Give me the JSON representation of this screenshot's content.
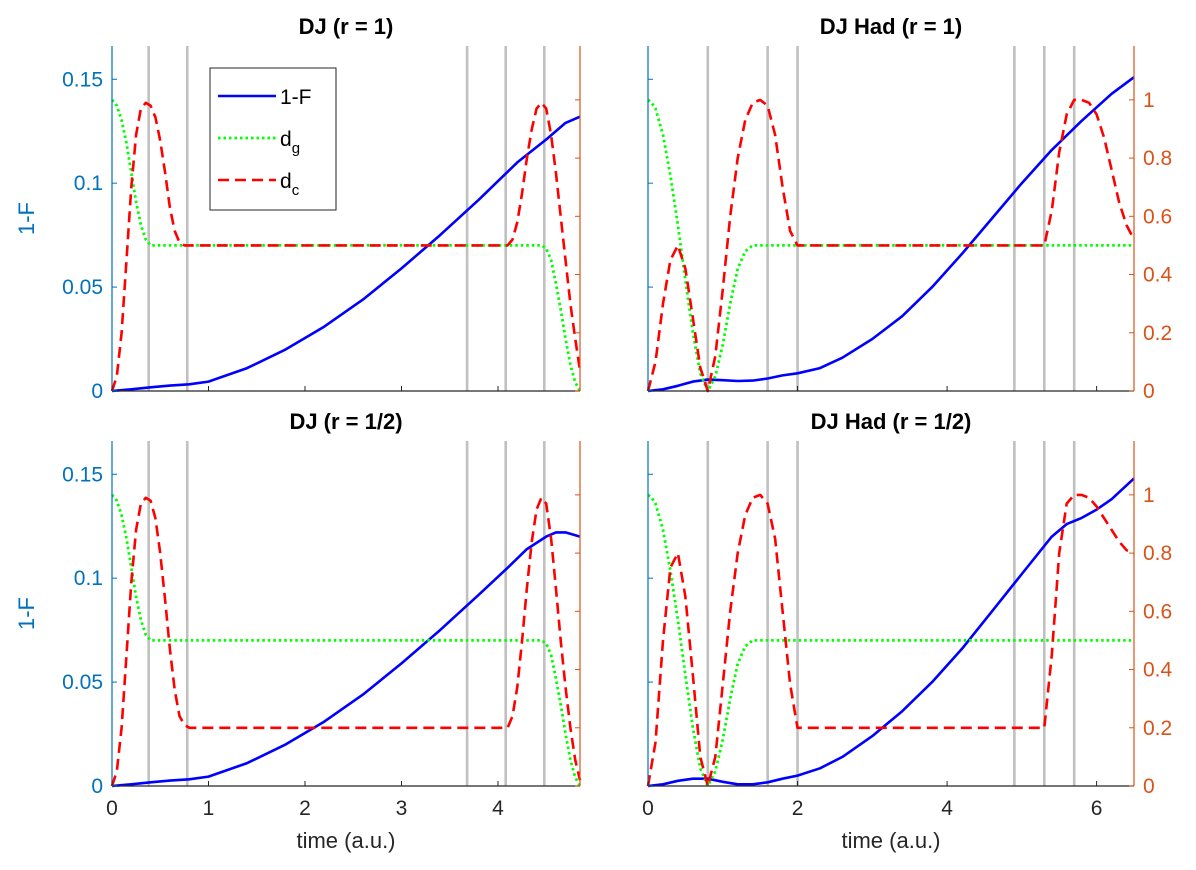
{
  "chart_data": [
    {
      "type": "line",
      "title": "DJ (r = 1)",
      "xlabel": "",
      "ylabel": "1-F",
      "xlim": [
        0,
        4.85
      ],
      "ylim_left": [
        0,
        0.166
      ],
      "ylim_right": [
        0,
        1.185
      ],
      "xticks": [],
      "yticks_left": [
        "0",
        "0.05",
        "0.1",
        "0.15"
      ],
      "yticks_right": [],
      "vlines": [
        0.38,
        0.78,
        3.68,
        4.08,
        4.48
      ],
      "series": [
        {
          "name": "1-F",
          "axis": "left",
          "style": "solid",
          "color": "#0000FF",
          "x": [
            0,
            0.2,
            0.4,
            0.6,
            0.8,
            1.0,
            1.4,
            1.8,
            2.2,
            2.6,
            3.0,
            3.4,
            3.8,
            4.2,
            4.5,
            4.7,
            4.85
          ],
          "y": [
            0,
            0.0008,
            0.0018,
            0.0026,
            0.0032,
            0.0045,
            0.011,
            0.02,
            0.031,
            0.044,
            0.059,
            0.075,
            0.092,
            0.11,
            0.121,
            0.129,
            0.132
          ]
        },
        {
          "name": "d_g",
          "axis": "right",
          "style": "dotted",
          "color": "#00FF00",
          "x": [
            0,
            0.05,
            0.1,
            0.15,
            0.2,
            0.25,
            0.3,
            0.35,
            0.4,
            4.4,
            4.45,
            4.5,
            4.55,
            4.6,
            4.65,
            4.7,
            4.75,
            4.8,
            4.85
          ],
          "y": [
            1.0,
            0.98,
            0.93,
            0.85,
            0.75,
            0.65,
            0.57,
            0.52,
            0.5,
            0.5,
            0.5,
            0.49,
            0.45,
            0.37,
            0.28,
            0.18,
            0.09,
            0.03,
            0
          ]
        },
        {
          "name": "d_c",
          "axis": "right",
          "style": "dashed",
          "color": "#FF0000",
          "x": [
            0,
            0.05,
            0.1,
            0.15,
            0.2,
            0.25,
            0.3,
            0.35,
            0.4,
            0.45,
            0.5,
            0.55,
            0.6,
            0.65,
            0.7,
            0.75,
            0.8,
            4.1,
            4.15,
            4.2,
            4.25,
            4.3,
            4.35,
            4.4,
            4.45,
            4.5,
            4.55,
            4.6,
            4.65,
            4.7,
            4.75,
            4.8,
            4.85
          ],
          "y": [
            0,
            0.05,
            0.2,
            0.45,
            0.7,
            0.88,
            0.97,
            0.99,
            0.98,
            0.94,
            0.86,
            0.75,
            0.63,
            0.55,
            0.51,
            0.5,
            0.5,
            0.5,
            0.52,
            0.58,
            0.68,
            0.8,
            0.9,
            0.97,
            0.99,
            0.97,
            0.88,
            0.75,
            0.6,
            0.45,
            0.3,
            0.18,
            0.07
          ]
        }
      ],
      "legend": {
        "placement": "top-left",
        "entries": [
          {
            "text": "1-F",
            "sub": ""
          },
          {
            "text": "d",
            "sub": "g"
          },
          {
            "text": "d",
            "sub": "c"
          }
        ]
      }
    },
    {
      "type": "line",
      "title": "DJ Had (r = 1)",
      "xlabel": "",
      "ylabel": "",
      "xlim": [
        0,
        6.5
      ],
      "ylim_left": [
        0,
        0.166
      ],
      "ylim_right": [
        0,
        1.185
      ],
      "xticks": [],
      "yticks_left": [],
      "yticks_right": [
        "0",
        "0.2",
        "0.4",
        "0.6",
        "0.8",
        "1"
      ],
      "vlines": [
        0.8,
        1.6,
        2.0,
        4.9,
        5.3,
        5.7
      ],
      "series": [
        {
          "name": "1-F",
          "axis": "left",
          "style": "solid",
          "color": "#0000FF",
          "x": [
            0,
            0.2,
            0.4,
            0.6,
            0.8,
            1.0,
            1.2,
            1.4,
            1.6,
            1.8,
            2.0,
            2.3,
            2.6,
            3.0,
            3.4,
            3.8,
            4.2,
            4.6,
            5.0,
            5.4,
            5.8,
            6.2,
            6.5
          ],
          "y": [
            0,
            0.0008,
            0.0025,
            0.0045,
            0.0055,
            0.0052,
            0.0048,
            0.005,
            0.006,
            0.0075,
            0.0085,
            0.011,
            0.016,
            0.025,
            0.036,
            0.05,
            0.066,
            0.083,
            0.1,
            0.116,
            0.13,
            0.143,
            0.151
          ]
        },
        {
          "name": "d_g",
          "axis": "right",
          "style": "dotted",
          "color": "#00FF00",
          "x": [
            0,
            0.05,
            0.1,
            0.2,
            0.3,
            0.4,
            0.5,
            0.6,
            0.7,
            0.8,
            0.9,
            1.0,
            1.1,
            1.2,
            1.3,
            1.4,
            1.5,
            1.6,
            6.5
          ],
          "y": [
            1.0,
            0.99,
            0.97,
            0.88,
            0.74,
            0.57,
            0.38,
            0.2,
            0.06,
            0,
            0.05,
            0.16,
            0.3,
            0.42,
            0.48,
            0.5,
            0.5,
            0.5,
            0.5
          ]
        },
        {
          "name": "d_c",
          "axis": "right",
          "style": "dashed",
          "color": "#FF0000",
          "x": [
            0,
            0.1,
            0.2,
            0.3,
            0.4,
            0.5,
            0.6,
            0.7,
            0.8,
            0.9,
            1.0,
            1.1,
            1.2,
            1.3,
            1.4,
            1.5,
            1.6,
            1.7,
            1.8,
            1.9,
            2.0,
            5.3,
            5.4,
            5.5,
            5.6,
            5.7,
            5.8,
            5.9,
            6.0,
            6.1,
            6.2,
            6.3,
            6.4,
            6.5
          ],
          "y": [
            0,
            0.1,
            0.3,
            0.45,
            0.5,
            0.42,
            0.25,
            0.08,
            0,
            0.12,
            0.35,
            0.6,
            0.8,
            0.93,
            0.99,
            1.0,
            0.98,
            0.88,
            0.7,
            0.55,
            0.5,
            0.5,
            0.62,
            0.82,
            0.95,
            1.0,
            1.0,
            0.99,
            0.95,
            0.87,
            0.76,
            0.65,
            0.57,
            0.52
          ]
        }
      ],
      "legend": null
    },
    {
      "type": "line",
      "title": "DJ (r = 1/2)",
      "xlabel": "time (a.u.)",
      "ylabel": "1-F",
      "xlim": [
        0,
        4.85
      ],
      "ylim_left": [
        0,
        0.166
      ],
      "ylim_right": [
        0,
        1.185
      ],
      "xticks": [
        "0",
        "1",
        "2",
        "3",
        "4"
      ],
      "yticks_left": [
        "0",
        "0.05",
        "0.1",
        "0.15"
      ],
      "yticks_right": [],
      "vlines": [
        0.38,
        0.78,
        3.68,
        4.08,
        4.48
      ],
      "series": [
        {
          "name": "1-F",
          "axis": "left",
          "style": "solid",
          "color": "#0000FF",
          "x": [
            0,
            0.2,
            0.4,
            0.6,
            0.8,
            1.0,
            1.4,
            1.8,
            2.2,
            2.6,
            3.0,
            3.4,
            3.8,
            4.1,
            4.3,
            4.5,
            4.6,
            4.7,
            4.85
          ],
          "y": [
            0,
            0.0008,
            0.0018,
            0.0026,
            0.0032,
            0.0045,
            0.011,
            0.02,
            0.031,
            0.044,
            0.059,
            0.075,
            0.092,
            0.105,
            0.114,
            0.12,
            0.122,
            0.122,
            0.12
          ]
        },
        {
          "name": "d_g",
          "axis": "right",
          "style": "dotted",
          "color": "#00FF00",
          "x": [
            0,
            0.05,
            0.1,
            0.15,
            0.2,
            0.25,
            0.3,
            0.35,
            0.4,
            4.4,
            4.45,
            4.5,
            4.55,
            4.6,
            4.65,
            4.7,
            4.75,
            4.8,
            4.85
          ],
          "y": [
            1.0,
            0.98,
            0.93,
            0.85,
            0.75,
            0.65,
            0.57,
            0.52,
            0.5,
            0.5,
            0.5,
            0.49,
            0.45,
            0.37,
            0.28,
            0.18,
            0.09,
            0.03,
            0
          ]
        },
        {
          "name": "d_c",
          "axis": "right",
          "style": "dashed",
          "color": "#FF0000",
          "x": [
            0,
            0.05,
            0.1,
            0.15,
            0.2,
            0.25,
            0.3,
            0.35,
            0.4,
            0.45,
            0.5,
            0.55,
            0.6,
            0.65,
            0.7,
            0.75,
            0.8,
            4.1,
            4.15,
            4.2,
            4.25,
            4.3,
            4.35,
            4.4,
            4.45,
            4.5,
            4.55,
            4.6,
            4.65,
            4.7,
            4.75,
            4.8,
            4.85
          ],
          "y": [
            0,
            0.05,
            0.2,
            0.45,
            0.7,
            0.88,
            0.97,
            0.99,
            0.98,
            0.92,
            0.8,
            0.64,
            0.47,
            0.33,
            0.24,
            0.21,
            0.2,
            0.2,
            0.24,
            0.34,
            0.5,
            0.68,
            0.84,
            0.95,
            0.99,
            0.97,
            0.85,
            0.68,
            0.5,
            0.34,
            0.2,
            0.09,
            0.02
          ]
        }
      ],
      "legend": null
    },
    {
      "type": "line",
      "title": "DJ Had (r = 1/2)",
      "xlabel": "time (a.u.)",
      "ylabel": "",
      "xlim": [
        0,
        6.5
      ],
      "ylim_left": [
        0,
        0.166
      ],
      "ylim_right": [
        0,
        1.185
      ],
      "xticks": [
        "0",
        "2",
        "4",
        "6"
      ],
      "yticks_left": [],
      "yticks_right": [
        "0",
        "0.2",
        "0.4",
        "0.6",
        "0.8",
        "1"
      ],
      "vlines": [
        0.8,
        1.6,
        2.0,
        4.9,
        5.3,
        5.7
      ],
      "series": [
        {
          "name": "1-F",
          "axis": "left",
          "style": "solid",
          "color": "#0000FF",
          "x": [
            0,
            0.2,
            0.4,
            0.6,
            0.8,
            1.0,
            1.2,
            1.4,
            1.6,
            1.8,
            2.0,
            2.3,
            2.6,
            3.0,
            3.4,
            3.8,
            4.2,
            4.6,
            5.0,
            5.4,
            5.6,
            5.8,
            6.0,
            6.2,
            6.5
          ],
          "y": [
            0,
            0.0008,
            0.0025,
            0.0035,
            0.0035,
            0.002,
            0.0008,
            0.0008,
            0.0018,
            0.0035,
            0.005,
            0.0085,
            0.014,
            0.024,
            0.036,
            0.05,
            0.066,
            0.084,
            0.102,
            0.12,
            0.126,
            0.129,
            0.133,
            0.138,
            0.148
          ]
        },
        {
          "name": "d_g",
          "axis": "right",
          "style": "dotted",
          "color": "#00FF00",
          "x": [
            0,
            0.05,
            0.1,
            0.2,
            0.3,
            0.4,
            0.5,
            0.6,
            0.7,
            0.8,
            0.9,
            1.0,
            1.1,
            1.2,
            1.3,
            1.4,
            1.5,
            1.6,
            6.5
          ],
          "y": [
            1.0,
            0.99,
            0.97,
            0.88,
            0.74,
            0.57,
            0.38,
            0.2,
            0.06,
            0,
            0.05,
            0.16,
            0.3,
            0.42,
            0.48,
            0.5,
            0.5,
            0.5,
            0.5
          ]
        },
        {
          "name": "d_c",
          "axis": "right",
          "style": "dashed",
          "color": "#FF0000",
          "x": [
            0,
            0.1,
            0.2,
            0.3,
            0.4,
            0.5,
            0.6,
            0.7,
            0.8,
            0.9,
            1.0,
            1.1,
            1.2,
            1.3,
            1.4,
            1.5,
            1.6,
            1.7,
            1.8,
            1.9,
            2.0,
            5.3,
            5.4,
            5.5,
            5.6,
            5.7,
            5.8,
            5.9,
            6.0,
            6.1,
            6.2,
            6.3,
            6.4,
            6.5
          ],
          "y": [
            0,
            0.15,
            0.5,
            0.75,
            0.8,
            0.65,
            0.38,
            0.1,
            0,
            0.1,
            0.35,
            0.6,
            0.8,
            0.93,
            0.99,
            1.0,
            0.97,
            0.85,
            0.6,
            0.35,
            0.2,
            0.2,
            0.45,
            0.8,
            0.97,
            1.0,
            1.0,
            0.99,
            0.96,
            0.92,
            0.88,
            0.84,
            0.81,
            0.8
          ]
        }
      ],
      "legend": null
    }
  ]
}
